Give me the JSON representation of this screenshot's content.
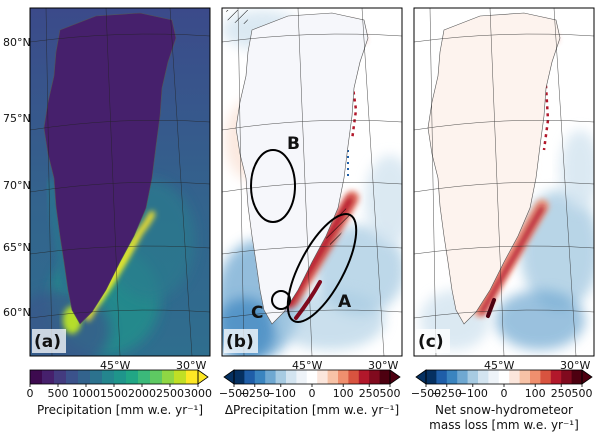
{
  "chart_data": [
    {
      "type": "heatmap",
      "panel_label": "(a)",
      "lat_labels": [
        "80°N",
        "75°N",
        "70°N",
        "65°N",
        "60°N"
      ],
      "lon_labels": [
        "45°W",
        "30°W"
      ],
      "colorbar": {
        "ticks": [
          "0",
          "500",
          "1000",
          "1500",
          "2000",
          "2500",
          "3000"
        ],
        "tick_values": [
          0,
          500,
          1000,
          1500,
          2000,
          2500,
          3000
        ],
        "range": [
          0,
          3000
        ],
        "label": "Precipitation [mm w.e. yr⁻¹]",
        "colormap": [
          "#3d0a4f",
          "#46206c",
          "#433b7f",
          "#3b528b",
          "#33638d",
          "#2c728e",
          "#24868e",
          "#1f958b",
          "#21a685",
          "#3bb97a",
          "#5ec962",
          "#8fd744",
          "#c0df25",
          "#fde725"
        ]
      }
    },
    {
      "type": "heatmap",
      "panel_label": "(b)",
      "lat_labels": [],
      "lon_labels": [
        "45°W",
        "30°W"
      ],
      "region_labels": [
        "A",
        "B",
        "C"
      ],
      "colorbar": {
        "ticks": [
          "−500",
          "−250",
          "−100",
          "0",
          "100",
          "250",
          "500"
        ],
        "tick_values": [
          -500,
          -250,
          -100,
          0,
          100,
          250,
          500
        ],
        "range": [
          -500,
          500
        ],
        "label": "ΔPrecipitation [mm w.e. yr⁻¹]",
        "colormap": [
          "#053061",
          "#1f5ea8",
          "#3a84bf",
          "#6fa8d1",
          "#a7cbe2",
          "#d3e4f0",
          "#eef3f8",
          "#ffffff",
          "#fbe6dc",
          "#f7c2a6",
          "#ef8f6e",
          "#d8533f",
          "#b2182b",
          "#800a1e",
          "#4d0010"
        ]
      }
    },
    {
      "type": "heatmap",
      "panel_label": "(c)",
      "lat_labels": [],
      "lon_labels": [
        "45°W",
        "30°W"
      ],
      "colorbar": {
        "ticks": [
          "−500",
          "−250",
          "−100",
          "0",
          "100",
          "250",
          "500"
        ],
        "tick_values": [
          -500,
          -250,
          -100,
          0,
          100,
          250,
          500
        ],
        "range": [
          -500,
          500
        ],
        "label_line1": "Net snow-hydrometeor",
        "label_line2": "mass loss [mm w.e. yr⁻¹]",
        "colormap": [
          "#053061",
          "#1f5ea8",
          "#3a84bf",
          "#6fa8d1",
          "#a7cbe2",
          "#d3e4f0",
          "#eef3f8",
          "#ffffff",
          "#fbe6dc",
          "#f7c2a6",
          "#ef8f6e",
          "#d8533f",
          "#b2182b",
          "#800a1e",
          "#4d0010"
        ]
      }
    }
  ]
}
